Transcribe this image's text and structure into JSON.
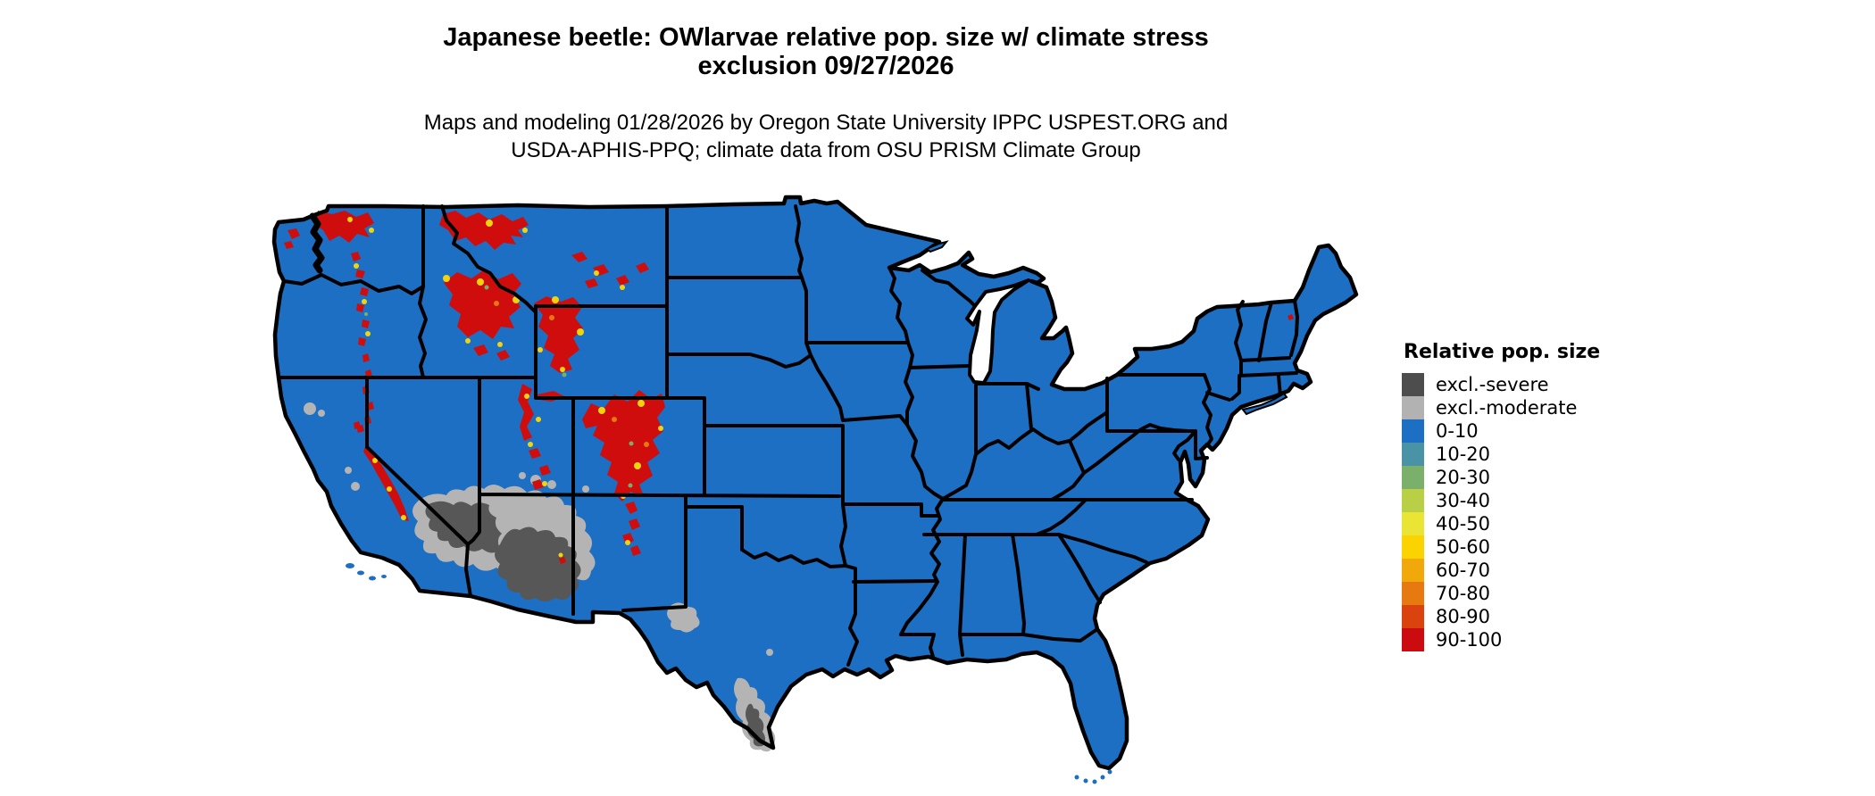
{
  "title": {
    "line1": "Japanese beetle: OWlarvae relative pop. size w/ climate stress",
    "line2": "exclusion 09/27/2026"
  },
  "subtitle": {
    "line1": "Maps and modeling 01/28/2026 by Oregon State University IPPC USPEST.ORG and",
    "line2": "USDA-APHIS-PPQ; climate data from OSU PRISM Climate Group"
  },
  "map": {
    "type": "choropleth-raster",
    "region": "Contiguous United States with state borders",
    "base_fill_color": "#1d6fc4",
    "state_border_color": "#000000",
    "water_color": "#ffffff",
    "background_color": "#ffffff",
    "overlay_colors": {
      "excl_severe": "#575757",
      "excl_moderate": "#b4b4b4",
      "pop_90_100": "#cf0d0d",
      "pop_50_60_specks": "#f2d40e",
      "pop_70_80_specks": "#e5790e",
      "pop_20_30_specks": "#79af6d"
    },
    "notes": "Most of the US is 0-10 (blue); excl.-severe/moderate gray over S. Arizona, SE California deserts, west & south Texas; 90-100 red patches over Cascades, Sierra Nevada, Idaho/Montana Rockies, Yellowstone, Wasatch and Colorado Rockies; yellow/orange fringes around red patches"
  },
  "legend": {
    "title": "Relative pop. size",
    "items": [
      {
        "label": "excl.-severe",
        "color": "#4d4d4d"
      },
      {
        "label": "excl.-moderate",
        "color": "#b2b2b2"
      },
      {
        "label": "0-10",
        "color": "#1d6fc4"
      },
      {
        "label": "10-20",
        "color": "#4a92a5"
      },
      {
        "label": "20-30",
        "color": "#7bb06a"
      },
      {
        "label": "30-40",
        "color": "#b9cf45"
      },
      {
        "label": "40-50",
        "color": "#eae535"
      },
      {
        "label": "50-60",
        "color": "#fbd300"
      },
      {
        "label": "60-70",
        "color": "#f1a80b"
      },
      {
        "label": "70-80",
        "color": "#e67a10"
      },
      {
        "label": "80-90",
        "color": "#da430e"
      },
      {
        "label": "90-100",
        "color": "#cb0b10"
      }
    ]
  }
}
